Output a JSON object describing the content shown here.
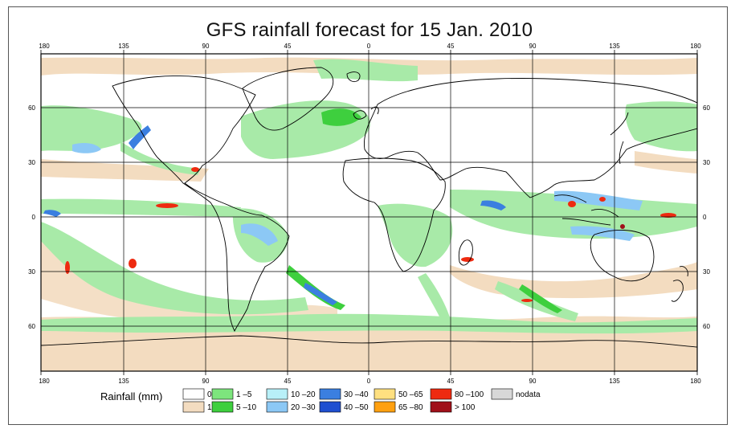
{
  "title": "GFS rainfall forecast for 15 Jan. 2010",
  "axes": {
    "top_lon_labels": [
      "180",
      "135",
      "90",
      "45",
      "0",
      "45",
      "90",
      "135",
      "180"
    ],
    "bottom_lon_labels": [
      "180",
      "135",
      "90",
      "45",
      "0",
      "45",
      "90",
      "135",
      "180"
    ],
    "left_lat_labels": [
      "60",
      "30",
      "0",
      "30",
      "60"
    ],
    "right_lat_labels": [
      "60",
      "30",
      "0",
      "30",
      "60"
    ]
  },
  "legend": {
    "title": "Rainfall (mm)",
    "items": [
      {
        "label": "0",
        "color": "#ffffff"
      },
      {
        "label": "1",
        "color": "#f3dcc0"
      },
      {
        "label": "1 –5",
        "color": "#7de57d"
      },
      {
        "label": "5 –10",
        "color": "#3ecf3e"
      },
      {
        "label": "10 –20",
        "color": "#b8f0f8"
      },
      {
        "label": "20 –30",
        "color": "#8cc8f5"
      },
      {
        "label": "30 –40",
        "color": "#3b7fe0"
      },
      {
        "label": "40 –50",
        "color": "#1f4fd0"
      },
      {
        "label": "50 –65",
        "color": "#ffe080"
      },
      {
        "label": "65 –80",
        "color": "#ffa010"
      },
      {
        "label": "80 –100",
        "color": "#ee2a10"
      },
      {
        "label": "> 100",
        "color": "#a0101a"
      },
      {
        "label": "nodata",
        "color": "#d8d8d8"
      }
    ]
  },
  "colors": {
    "light_green": "#a8eaa8",
    "tan": "#f3dcc0",
    "blue": "#3b7fe0",
    "red": "#ee2a10"
  }
}
